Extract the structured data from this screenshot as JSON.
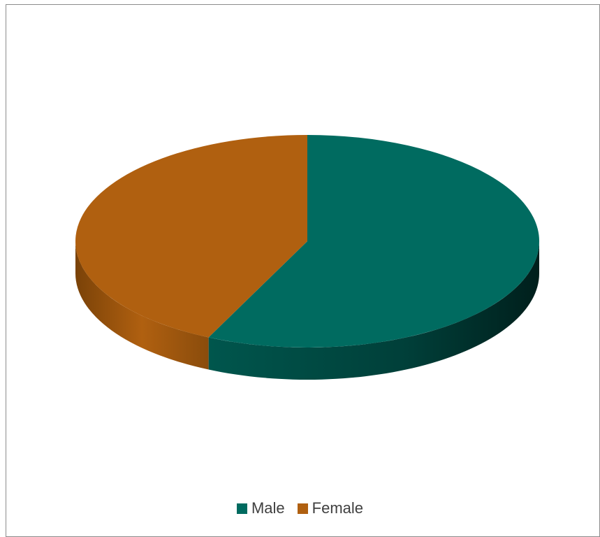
{
  "chart_data": {
    "type": "pie",
    "title": "",
    "categories": [
      "Male",
      "Female"
    ],
    "values": [
      57,
      43
    ],
    "colors": [
      "#006b60",
      "#b06010"
    ],
    "three_d": true,
    "legend_position": "bottom"
  }
}
